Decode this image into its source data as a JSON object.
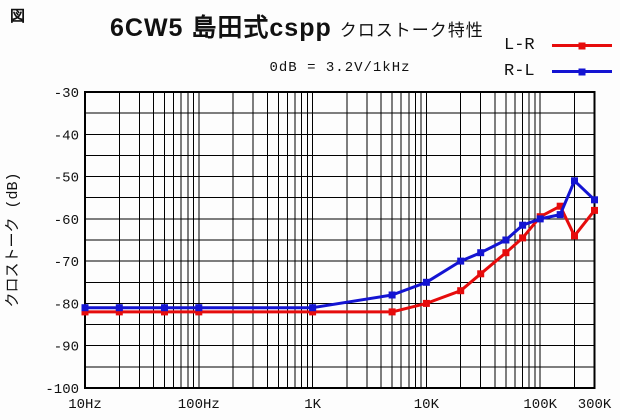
{
  "fig_label": "図",
  "title": {
    "main": "6CW5 島田式cspp",
    "sub": "クロストーク特性"
  },
  "reference": "0dB = 3.2V/1kHz",
  "legend": [
    {
      "label": "L-R",
      "color": "#e60c0c"
    },
    {
      "label": "R-L",
      "color": "#1414d2"
    }
  ],
  "colors": {
    "grid": "#000000",
    "border": "#000000",
    "background": "#fdfdfd",
    "series_L_R": "#e60c0c",
    "series_R_L": "#1414d2"
  },
  "chart_data": {
    "type": "line",
    "title": "6CW5 島田式cspp クロストーク特性",
    "subtitle": "0dB = 3.2V/1kHz",
    "xlabel": "",
    "ylabel": "クロストーク (dB)",
    "x_scale": "log",
    "xlim": [
      10,
      300000
    ],
    "ylim": [
      -100,
      -30
    ],
    "grid": true,
    "grid_minor_y_step": 5,
    "legend_position": "top-right",
    "x_tick_labels": [
      "10Hz",
      "100Hz",
      "1K",
      "10K",
      "100K",
      "300K"
    ],
    "x_tick_values": [
      10,
      100,
      1000,
      10000,
      100000,
      300000
    ],
    "y_tick_labels": [
      "-30",
      "-40",
      "-50",
      "-60",
      "-70",
      "-80",
      "-90",
      "-100"
    ],
    "y_tick_values": [
      -30,
      -40,
      -50,
      -60,
      -70,
      -80,
      -90,
      -100
    ],
    "x": [
      10,
      20,
      50,
      100,
      1000,
      5000,
      10000,
      20000,
      30000,
      50000,
      70000,
      100000,
      150000,
      200000,
      300000
    ],
    "series": [
      {
        "name": "L-R",
        "color": "#e60c0c",
        "values": [
          -82,
          -82,
          -82,
          -82,
          -82,
          -82,
          -80,
          -77,
          -73,
          -68,
          -64.5,
          -59.5,
          -57,
          -64,
          -58
        ]
      },
      {
        "name": "R-L",
        "color": "#1414d2",
        "values": [
          -81,
          -81,
          -81,
          -81,
          -81,
          -78,
          -75,
          -70,
          -68,
          -65,
          -61.5,
          -60,
          -59,
          -51,
          -55.5
        ]
      }
    ]
  }
}
